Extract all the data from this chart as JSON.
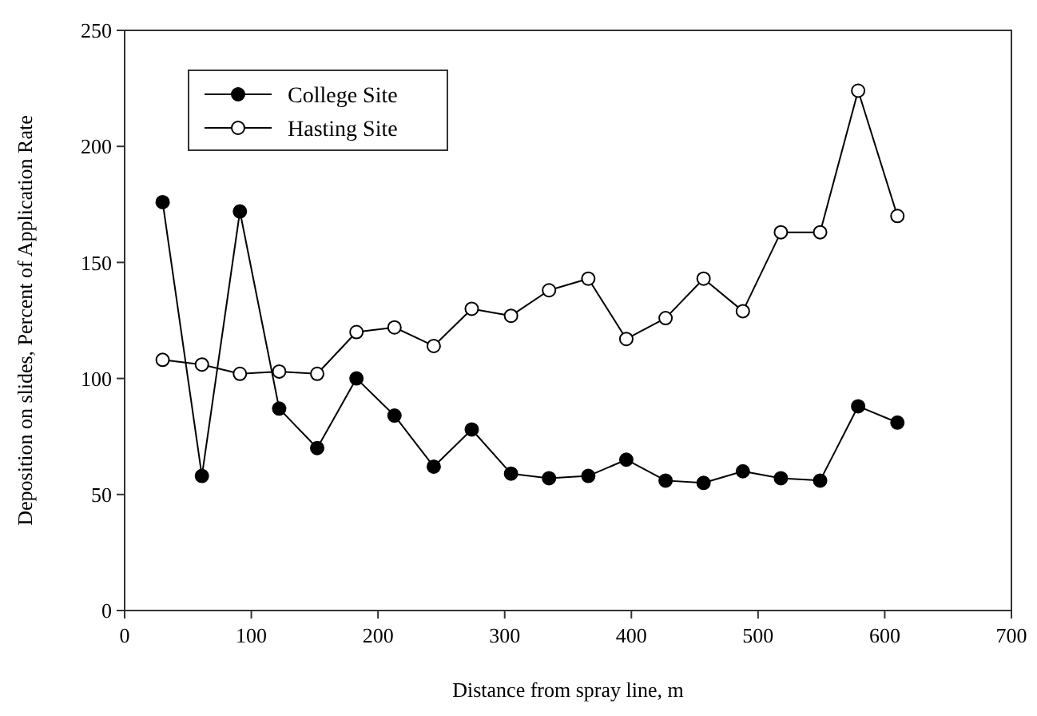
{
  "chart_data": {
    "type": "line",
    "xlabel": "Distance from spray line, m",
    "ylabel": "Deposition on slides, Percent of Application Rate",
    "x": [
      30,
      61,
      91,
      122,
      152,
      183,
      213,
      244,
      274,
      305,
      335,
      366,
      396,
      427,
      457,
      488,
      518,
      549,
      579,
      610
    ],
    "series": [
      {
        "name": "College Site",
        "color": "#000000",
        "values": [
          176,
          58,
          172,
          87,
          70,
          100,
          84,
          62,
          78,
          59,
          57,
          58,
          65,
          56,
          55,
          60,
          57,
          56,
          88,
          81
        ]
      },
      {
        "name": "Hasting Site",
        "color": "#000000",
        "values": [
          108,
          106,
          102,
          103,
          102,
          120,
          122,
          114,
          130,
          127,
          138,
          143,
          117,
          126,
          143,
          129,
          163,
          163,
          224,
          170
        ]
      }
    ],
    "xlim": [
      0,
      700
    ],
    "xticks": [
      0,
      100,
      200,
      300,
      400,
      500,
      600,
      700
    ],
    "ylim": [
      0,
      250
    ],
    "yticks": [
      0,
      50,
      100,
      150,
      200,
      250
    ],
    "legend": "top left",
    "marker": "circle",
    "line_style": "solid"
  }
}
